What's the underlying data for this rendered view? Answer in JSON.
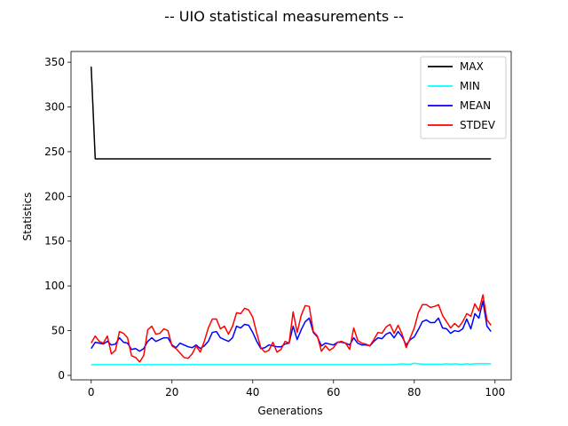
{
  "chart_data": {
    "type": "line",
    "title": "-- UIO statistical measurements --",
    "xlabel": "Generations",
    "ylabel": "Statistics",
    "xlim": [
      -5,
      104
    ],
    "ylim": [
      -5,
      362
    ],
    "xticks": [
      0,
      20,
      40,
      60,
      80,
      100
    ],
    "yticks": [
      0,
      50,
      100,
      150,
      200,
      250,
      300,
      350
    ],
    "grid": false,
    "legend_position": "top-right",
    "x": [
      0,
      1,
      2,
      3,
      4,
      5,
      6,
      7,
      8,
      9,
      10,
      11,
      12,
      13,
      14,
      15,
      16,
      17,
      18,
      19,
      20,
      21,
      22,
      23,
      24,
      25,
      26,
      27,
      28,
      29,
      30,
      31,
      32,
      33,
      34,
      35,
      36,
      37,
      38,
      39,
      40,
      41,
      42,
      43,
      44,
      45,
      46,
      47,
      48,
      49,
      50,
      51,
      52,
      53,
      54,
      55,
      56,
      57,
      58,
      59,
      60,
      61,
      62,
      63,
      64,
      65,
      66,
      67,
      68,
      69,
      70,
      71,
      72,
      73,
      74,
      75,
      76,
      77,
      78,
      79,
      80,
      81,
      82,
      83,
      84,
      85,
      86,
      87,
      88,
      89,
      90,
      91,
      92,
      93,
      94,
      95,
      96,
      97,
      98,
      99
    ],
    "series": [
      {
        "name": "MAX",
        "color": "#000000",
        "values": [
          345,
          242,
          242,
          242,
          242,
          242,
          242,
          242,
          242,
          242,
          242,
          242,
          242,
          242,
          242,
          242,
          242,
          242,
          242,
          242,
          242,
          242,
          242,
          242,
          242,
          242,
          242,
          242,
          242,
          242,
          242,
          242,
          242,
          242,
          242,
          242,
          242,
          242,
          242,
          242,
          242,
          242,
          242,
          242,
          242,
          242,
          242,
          242,
          242,
          242,
          242,
          242,
          242,
          242,
          242,
          242,
          242,
          242,
          242,
          242,
          242,
          242,
          242,
          242,
          242,
          242,
          242,
          242,
          242,
          242,
          242,
          242,
          242,
          242,
          242,
          242,
          242,
          242,
          242,
          242,
          242,
          242,
          242,
          242,
          242,
          242,
          242,
          242,
          242,
          242,
          242,
          242,
          242,
          242,
          242,
          242,
          242,
          242,
          242,
          242
        ]
      },
      {
        "name": "MIN",
        "color": "#00ffff",
        "values": [
          12,
          12,
          12,
          12,
          12,
          12,
          12,
          12,
          12,
          12,
          12,
          12,
          12,
          12,
          12,
          12,
          12,
          12,
          12,
          12,
          12,
          12,
          12,
          12,
          12,
          12,
          12,
          12,
          12,
          12,
          12,
          12,
          12,
          12,
          12,
          12,
          12,
          12,
          12,
          12,
          12,
          12,
          12,
          12,
          12,
          12,
          12,
          12,
          12,
          12,
          12,
          12,
          12,
          12,
          12,
          12,
          12,
          12,
          12,
          12,
          12,
          12,
          12,
          12,
          12,
          12,
          12,
          12,
          12,
          12,
          12,
          12,
          12,
          12,
          12,
          12,
          12.5,
          13,
          12.5,
          12.5,
          13.5,
          13,
          12.5,
          12.5,
          12.5,
          12.5,
          12.5,
          12.5,
          13,
          12.5,
          13,
          12.5,
          12.5,
          13,
          12.5,
          13,
          13,
          13,
          13,
          13
        ]
      },
      {
        "name": "MEAN",
        "color": "#0000ff",
        "values": [
          30,
          37,
          36,
          35,
          38,
          34,
          35,
          42,
          37,
          36,
          29,
          30,
          27,
          30,
          38,
          42,
          38,
          40,
          42,
          42,
          34,
          31,
          36,
          34,
          32,
          31,
          34,
          30,
          33,
          38,
          48,
          49,
          42,
          40,
          38,
          42,
          55,
          53,
          57,
          56,
          48,
          38,
          30,
          31,
          34,
          33,
          32,
          32,
          35,
          36,
          55,
          40,
          51,
          60,
          64,
          48,
          43,
          33,
          36,
          35,
          34,
          37,
          37,
          36,
          34,
          42,
          36,
          34,
          34,
          33,
          38,
          42,
          41,
          46,
          48,
          42,
          49,
          43,
          34,
          40,
          43,
          51,
          60,
          62,
          59,
          59,
          64,
          53,
          52,
          47,
          50,
          49,
          52,
          63,
          52,
          69,
          64,
          83,
          55,
          49
        ]
      },
      {
        "name": "STDEV",
        "color": "#ff0000",
        "values": [
          36,
          44,
          38,
          36,
          44,
          24,
          28,
          49,
          47,
          42,
          22,
          20,
          15,
          22,
          51,
          55,
          46,
          47,
          52,
          50,
          33,
          30,
          25,
          20,
          19,
          24,
          33,
          26,
          38,
          53,
          63,
          63,
          52,
          55,
          46,
          55,
          70,
          69,
          75,
          73,
          65,
          47,
          31,
          26,
          28,
          37,
          26,
          29,
          38,
          36,
          71,
          48,
          67,
          78,
          77,
          49,
          44,
          27,
          33,
          28,
          31,
          37,
          38,
          36,
          29,
          53,
          39,
          36,
          35,
          33,
          40,
          48,
          47,
          54,
          57,
          47,
          56,
          46,
          31,
          42,
          53,
          70,
          79,
          79,
          76,
          77,
          79,
          67,
          60,
          53,
          58,
          54,
          60,
          69,
          66,
          80,
          72,
          90,
          62,
          56
        ]
      }
    ]
  }
}
